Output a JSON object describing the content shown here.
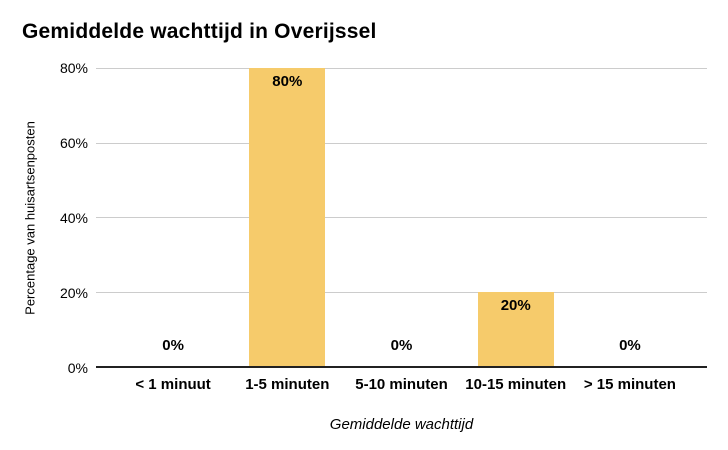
{
  "chart": {
    "title": "Gemiddelde wachttijd in Overijssel",
    "ylabel": "Percentage van huisartsenposten",
    "xlabel": "Gemiddelde wachttijd"
  },
  "chart_data": {
    "type": "bar",
    "title": "Gemiddelde wachttijd in Overijssel",
    "categories": [
      "< 1 minuut",
      "1-5 minuten",
      "5-10 minuten",
      "10-15 minuten",
      "> 15 minuten"
    ],
    "values": [
      0,
      80,
      0,
      20,
      0
    ],
    "data_labels": [
      "0%",
      "80%",
      "0%",
      "20%",
      "0%"
    ],
    "xlabel": "Gemiddelde wachttijd",
    "ylabel": "Percentage van huisartsenposten",
    "ylim": [
      0,
      80
    ],
    "ytick_values": [
      0,
      20,
      40,
      60,
      80
    ],
    "ytick_labels": [
      "0%",
      "20%",
      "40%",
      "60%",
      "80%"
    ],
    "grid": true,
    "legend": false,
    "colors": {
      "bar_fill": "#F6CB6B",
      "gridline": "#CCCCCC",
      "axis_line": "#212121",
      "text": "#000000"
    }
  }
}
